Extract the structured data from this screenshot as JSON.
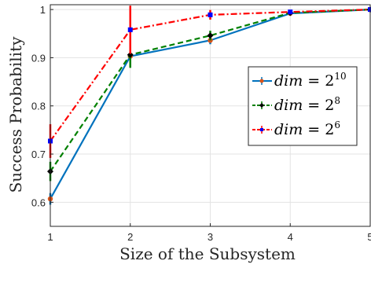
{
  "chart_data": {
    "type": "line",
    "title": "",
    "xlabel": "Size of the Subsystem",
    "ylabel": "Success Probability",
    "xlim": [
      1,
      5
    ],
    "ylim": [
      0.55,
      1.01
    ],
    "xticks": [
      1,
      2,
      3,
      4,
      5
    ],
    "yticks": [
      0.6,
      0.7,
      0.8,
      0.9,
      1
    ],
    "ytick_labels": [
      "0.6",
      "0.7",
      "0.8",
      "0.9",
      "1"
    ],
    "xtick_labels": [
      "1",
      "2",
      "3",
      "4",
      "5"
    ],
    "grid": true,
    "legend_position": "right",
    "x": [
      1,
      2,
      3,
      4,
      5
    ],
    "series": [
      {
        "name": "dim = 2^10",
        "legend_base": "dim = 2",
        "legend_exp": "10",
        "color": "#0072BD",
        "marker_color": "#D95319",
        "line_style": "solid",
        "values": [
          0.607,
          0.903,
          0.936,
          0.992,
          1.0
        ],
        "errors": [
          0.012,
          0.008,
          0.008,
          0.003,
          0.001
        ]
      },
      {
        "name": "dim = 2^8",
        "legend_base": "dim = 2",
        "legend_exp": "8",
        "color": "#008000",
        "marker_color": "#000000",
        "line_style": "dashed",
        "values": [
          0.664,
          0.906,
          0.946,
          0.993,
          1.0
        ],
        "errors": [
          0.02,
          0.027,
          0.01,
          0.004,
          0.001
        ]
      },
      {
        "name": "dim = 2^6",
        "legend_base": "dim = 2",
        "legend_exp": "6",
        "color": "#FF0000",
        "marker_color": "#0000FF",
        "line_style": "dashdot",
        "values": [
          0.727,
          0.958,
          0.989,
          0.995,
          1.0
        ],
        "errors": [
          0.035,
          0.05,
          0.01,
          0.004,
          0.001
        ]
      }
    ]
  }
}
